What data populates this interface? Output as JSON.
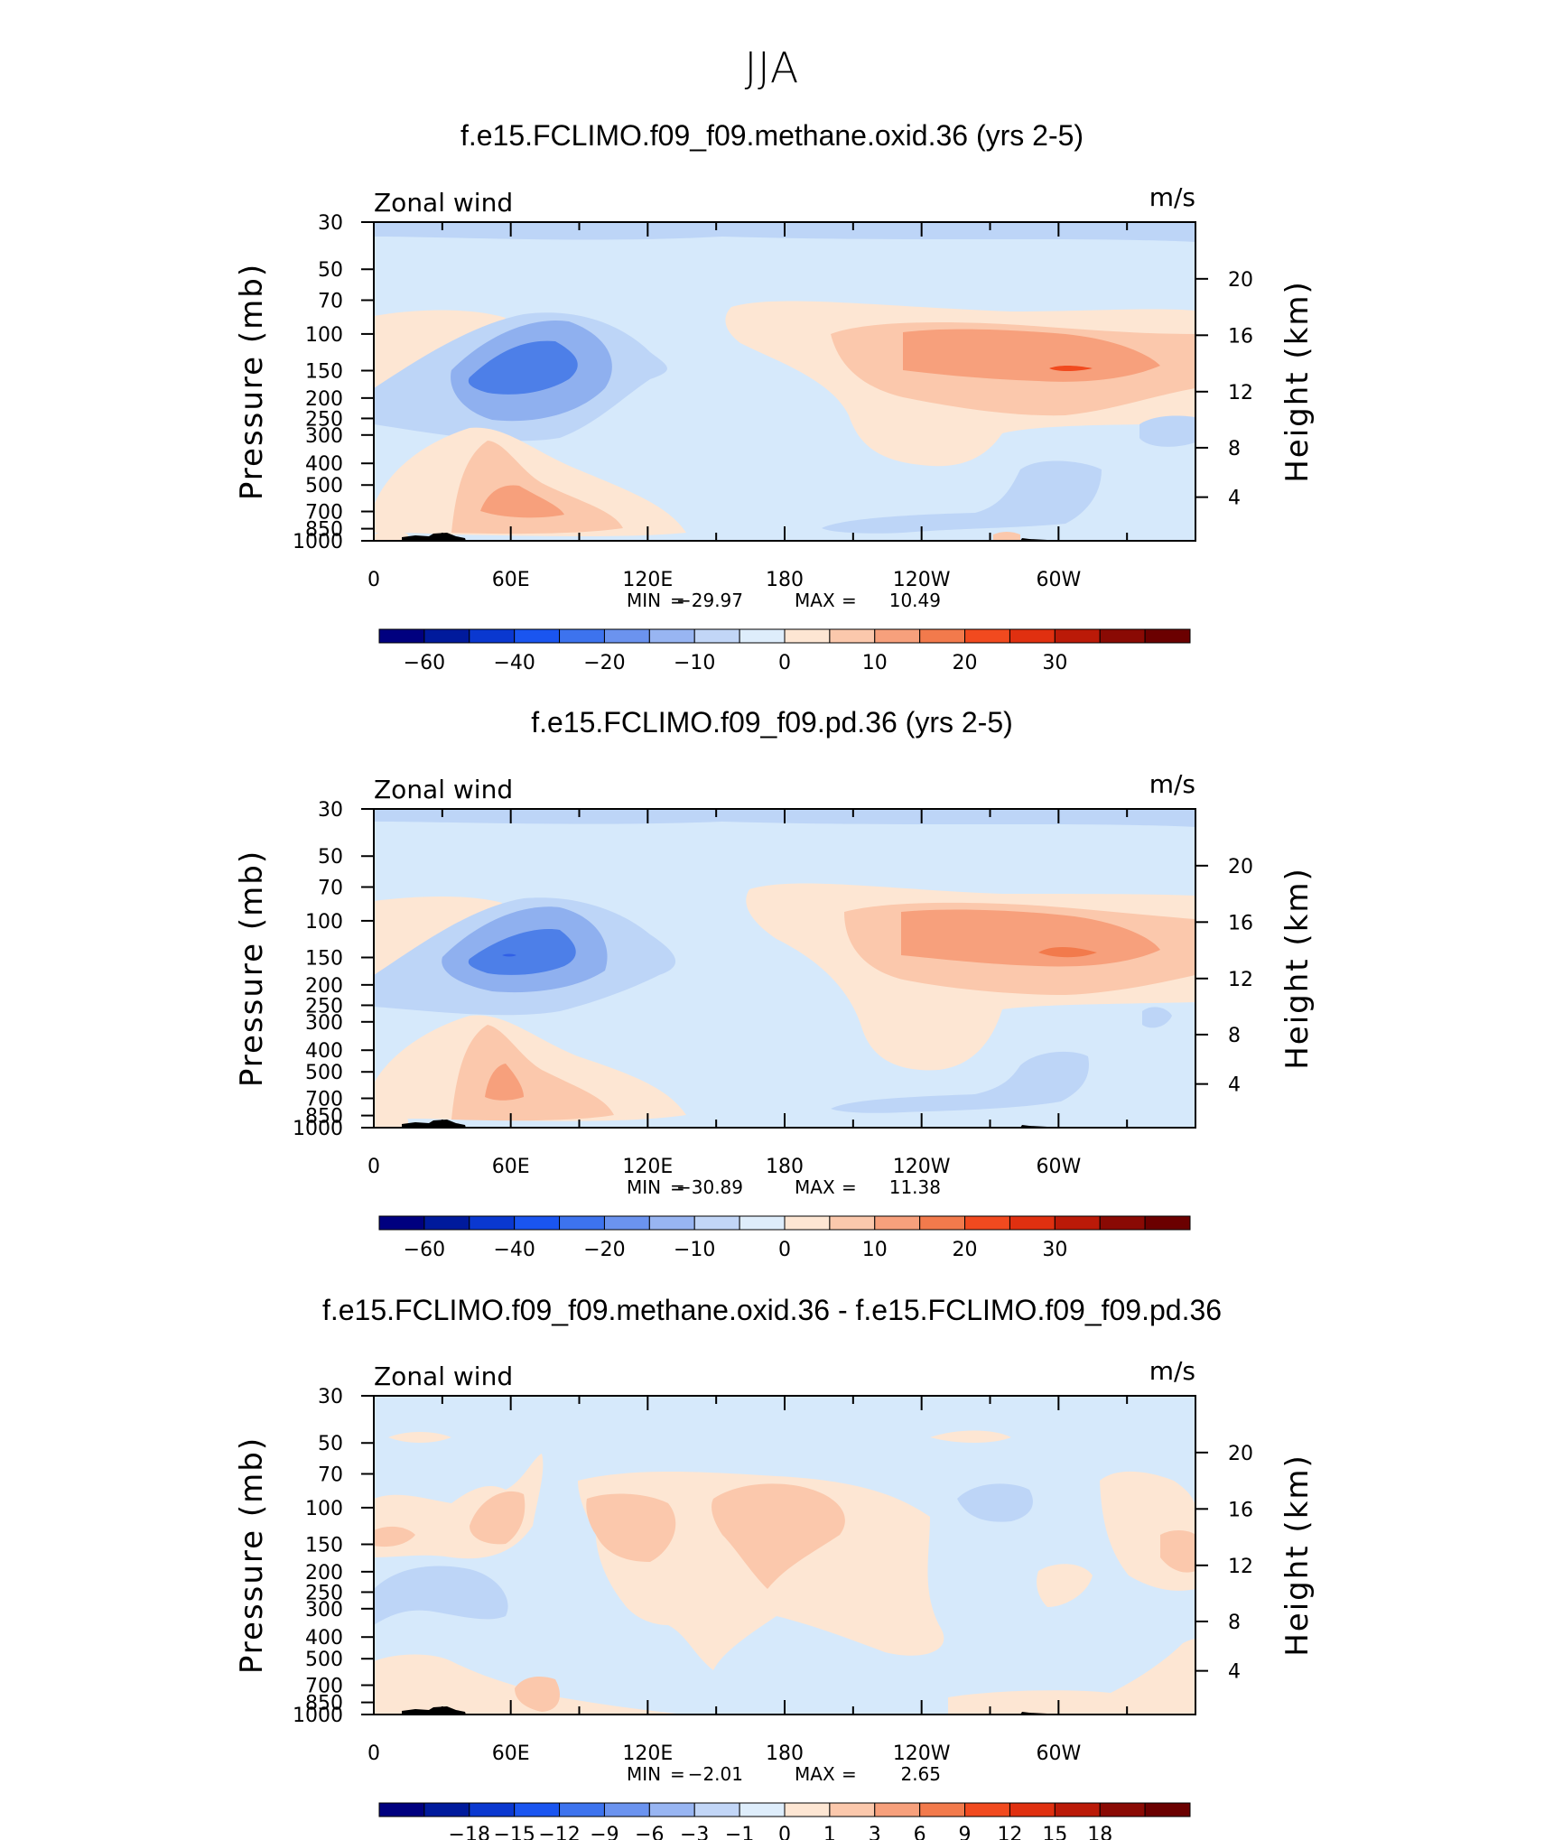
{
  "main_title": "JJA",
  "colors": {
    "bg": "#d6e9fb",
    "pos1": "#fde6d3",
    "pos2": "#fbc8ac",
    "pos3": "#f7a07c",
    "pos4": "#f27a4c",
    "pos5": "#f14a1f",
    "neg1": "#bdd5f7",
    "neg2": "#8fb0ef",
    "neg3": "#4d7fe8",
    "neg4": "#3160e6"
  },
  "chart_data": [
    {
      "type": "contour",
      "title": "f.e15.FCLIMO.f09_f09.methane.oxid.36 (yrs 2-5)",
      "left_label": "Zonal wind",
      "right_label": "m/s",
      "ylabel": "Pressure (mb)",
      "y2label": "Height (km)",
      "x_ticks": [
        "0",
        "60E",
        "120E",
        "180",
        "120W",
        "60W"
      ],
      "y_ticks": [
        "30",
        "50",
        "70",
        "100",
        "150",
        "200",
        "250",
        "300",
        "400",
        "500",
        "700",
        "850",
        "1000"
      ],
      "y2_ticks": [
        "20",
        "16",
        "12",
        "8",
        "4"
      ],
      "stats": {
        "min_label": "MIN",
        "min": "−29.97",
        "max_label": "MAX",
        "max": "10.49"
      },
      "colorbar": {
        "colors": [
          "#00007f",
          "#001a9c",
          "#0a38d0",
          "#1a55f0",
          "#3d73ee",
          "#6b93ef",
          "#98b5f2",
          "#c2d6f7",
          "#deedfb",
          "#fde6d3",
          "#fbc8ac",
          "#f7a07c",
          "#f27a4c",
          "#f14a1f",
          "#e03010",
          "#bb1a08",
          "#8a0a04",
          "#6b0000"
        ],
        "labels": [
          "−60",
          "−40",
          "−20",
          "−10",
          "0",
          "10",
          "20",
          "30"
        ]
      }
    },
    {
      "type": "contour",
      "title": "f.e15.FCLIMO.f09_f09.pd.36 (yrs 2-5)",
      "left_label": "Zonal wind",
      "right_label": "m/s",
      "ylabel": "Pressure (mb)",
      "y2label": "Height (km)",
      "x_ticks": [
        "0",
        "60E",
        "120E",
        "180",
        "120W",
        "60W"
      ],
      "y_ticks": [
        "30",
        "50",
        "70",
        "100",
        "150",
        "200",
        "250",
        "300",
        "400",
        "500",
        "700",
        "850",
        "1000"
      ],
      "y2_ticks": [
        "20",
        "16",
        "12",
        "8",
        "4"
      ],
      "stats": {
        "min_label": "MIN",
        "min": "−30.89",
        "max_label": "MAX",
        "max": "11.38"
      },
      "colorbar": {
        "colors": [
          "#00007f",
          "#001a9c",
          "#0a38d0",
          "#1a55f0",
          "#3d73ee",
          "#6b93ef",
          "#98b5f2",
          "#c2d6f7",
          "#deedfb",
          "#fde6d3",
          "#fbc8ac",
          "#f7a07c",
          "#f27a4c",
          "#f14a1f",
          "#e03010",
          "#bb1a08",
          "#8a0a04",
          "#6b0000"
        ],
        "labels": [
          "−60",
          "−40",
          "−20",
          "−10",
          "0",
          "10",
          "20",
          "30"
        ]
      }
    },
    {
      "type": "contour",
      "title": "f.e15.FCLIMO.f09_f09.methane.oxid.36 - f.e15.FCLIMO.f09_f09.pd.36",
      "left_label": "Zonal wind",
      "right_label": "m/s",
      "ylabel": "Pressure (mb)",
      "y2label": "Height (km)",
      "x_ticks": [
        "0",
        "60E",
        "120E",
        "180",
        "120W",
        "60W"
      ],
      "y_ticks": [
        "30",
        "50",
        "70",
        "100",
        "150",
        "200",
        "250",
        "300",
        "400",
        "500",
        "700",
        "850",
        "1000"
      ],
      "y2_ticks": [
        "20",
        "16",
        "12",
        "8",
        "4"
      ],
      "stats": {
        "min_label": "MIN",
        "min": "−2.01",
        "max_label": "MAX",
        "max": "2.65"
      },
      "colorbar": {
        "colors": [
          "#00007f",
          "#001a9c",
          "#0a38d0",
          "#1a55f0",
          "#3d73ee",
          "#6b93ef",
          "#98b5f2",
          "#c2d6f7",
          "#deedfb",
          "#fde6d3",
          "#fbc8ac",
          "#f7a07c",
          "#f27a4c",
          "#f14a1f",
          "#e03010",
          "#bb1a08",
          "#8a0a04",
          "#6b0000"
        ],
        "labels": [
          "−18",
          "−15",
          "−12",
          "−9",
          "−6",
          "−3",
          "−1",
          "0",
          "1",
          "3",
          "6",
          "9",
          "12",
          "15",
          "18"
        ]
      }
    }
  ]
}
